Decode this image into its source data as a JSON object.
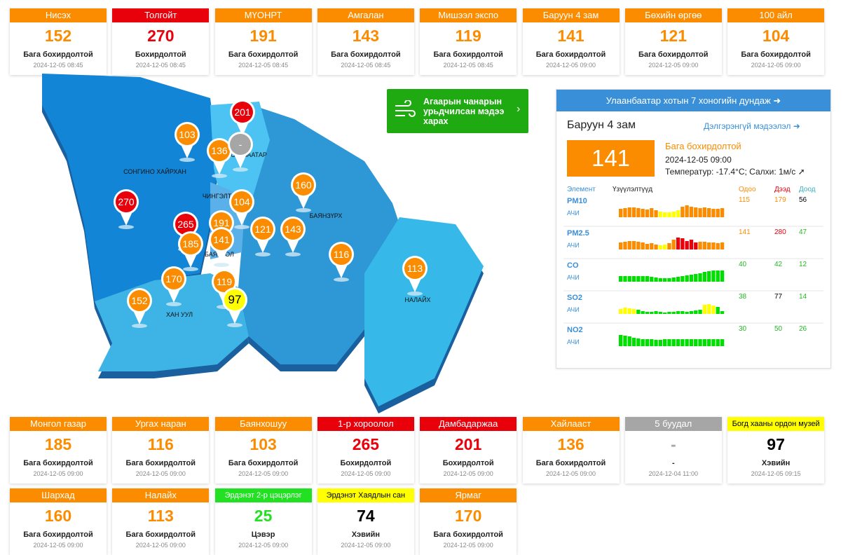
{
  "top_stations": [
    {
      "name": "Нисэх",
      "value": 152,
      "status": "Бага бохирдолтой",
      "time": "2024-12-05 08:45",
      "color": "#fb8c00"
    },
    {
      "name": "Толгойт",
      "value": 270,
      "status": "Бохирдолтой",
      "time": "2024-12-05 08:45",
      "color": "#e8000b"
    },
    {
      "name": "МҮОНРТ",
      "value": 191,
      "status": "Бага бохирдолтой",
      "time": "2024-12-05 08:45",
      "color": "#fb8c00"
    },
    {
      "name": "Амгалан",
      "value": 143,
      "status": "Бага бохирдолтой",
      "time": "2024-12-05 08:45",
      "color": "#fb8c00"
    },
    {
      "name": "Мишээл экспо",
      "value": 119,
      "status": "Бага бохирдолтой",
      "time": "2024-12-05 08:45",
      "color": "#fb8c00"
    },
    {
      "name": "Баруун 4 зам",
      "value": 141,
      "status": "Бага бохирдолтой",
      "time": "2024-12-05 09:00",
      "color": "#fb8c00"
    },
    {
      "name": "Бөхийн өргөө",
      "value": 121,
      "status": "Бага бохирдолтой",
      "time": "2024-12-05 09:00",
      "color": "#fb8c00"
    },
    {
      "name": "100 айл",
      "value": 104,
      "status": "Бага бохирдолтой",
      "time": "2024-12-05 09:00",
      "color": "#fb8c00"
    }
  ],
  "forecast_button": "Агаарын чанарын урьдчилсан мэдээ харах",
  "map": {
    "districts": [
      "СОНГИНО ХАЙРХАН",
      "СҮХБААТАР",
      "ЧИНГЭЛТЭЙ",
      "БАЯНЗҮРХ",
      "БАЯНГОЛ",
      "ХАН УУЛ",
      "НАЛАЙХ"
    ],
    "markers": [
      {
        "value": 103,
        "color": "#fb8c00"
      },
      {
        "value": 201,
        "color": "#e8000b"
      },
      {
        "value": 136,
        "color": "#fb8c00"
      },
      {
        "value": "-",
        "color": "#a6a6a6"
      },
      {
        "value": 270,
        "color": "#e8000b"
      },
      {
        "value": 160,
        "color": "#fb8c00"
      },
      {
        "value": 104,
        "color": "#fb8c00"
      },
      {
        "value": 265,
        "color": "#e8000b"
      },
      {
        "value": 191,
        "color": "#fb8c00"
      },
      {
        "value": 121,
        "color": "#fb8c00"
      },
      {
        "value": 143,
        "color": "#fb8c00"
      },
      {
        "value": 185,
        "color": "#fb8c00"
      },
      {
        "value": 141,
        "color": "#fb8c00"
      },
      {
        "value": 116,
        "color": "#fb8c00"
      },
      {
        "value": 113,
        "color": "#fb8c00"
      },
      {
        "value": 170,
        "color": "#fb8c00"
      },
      {
        "value": 119,
        "color": "#fb8c00"
      },
      {
        "value": 97,
        "color": "#ffff00"
      },
      {
        "value": 152,
        "color": "#fb8c00"
      }
    ]
  },
  "panel": {
    "title": "Улаанбаатар хотын 7 хоногийн дундаж",
    "station": "Баруун 4 зам",
    "details_link": "Дэлгэрэнгүй мэдээлэл",
    "value": 141,
    "status": "Бага бохирдолтой",
    "time": "2024-12-05 09:00",
    "weather": "Температур: -17.4°C; Салхи: 1м/с",
    "columns": [
      "Элемент",
      "Үзүүлэлтүүд",
      "Одоо",
      "Дээд",
      "Доод"
    ],
    "rows": [
      {
        "name": "PM10",
        "unit": "АЧИ",
        "now": 115,
        "max": 179,
        "min": 56,
        "colors": [
          "#fb8c00",
          "#fb8c00",
          "#000"
        ],
        "history": [
          12,
          13,
          14,
          14,
          13,
          12,
          11,
          13,
          10,
          8,
          7,
          7,
          8,
          10,
          15,
          17,
          15,
          14,
          13,
          14,
          13,
          12,
          12,
          13
        ],
        "history_colors": [
          "orange",
          "orange",
          "orange",
          "orange",
          "orange",
          "orange",
          "orange",
          "orange",
          "orange",
          "yellow",
          "yellow",
          "yellow",
          "yellow",
          "yellow",
          "orange",
          "orange",
          "orange",
          "orange",
          "orange",
          "orange",
          "orange",
          "orange",
          "orange",
          "orange"
        ]
      },
      {
        "name": "PM2.5",
        "unit": "АЧИ",
        "now": 141,
        "max": 280,
        "min": 47,
        "colors": [
          "#fb8c00",
          "#e8000b",
          "#22bb22"
        ],
        "history": [
          10,
          11,
          12,
          12,
          11,
          10,
          8,
          9,
          7,
          6,
          7,
          9,
          14,
          17,
          16,
          12,
          14,
          10,
          11,
          11,
          10,
          10,
          9,
          10
        ],
        "history_colors": [
          "orange",
          "orange",
          "orange",
          "orange",
          "orange",
          "orange",
          "orange",
          "orange",
          "orange",
          "yellow",
          "yellow",
          "orange",
          "orange",
          "red",
          "red",
          "red",
          "red",
          "red",
          "orange",
          "orange",
          "orange",
          "orange",
          "orange",
          "orange"
        ]
      },
      {
        "name": "CO",
        "unit": "АЧИ",
        "now": 40,
        "max": 42,
        "min": 12,
        "colors": [
          "#22bb22",
          "#22bb22",
          "#22bb22"
        ],
        "history": [
          8,
          8,
          8,
          8,
          8,
          8,
          8,
          7,
          6,
          5,
          5,
          5,
          6,
          7,
          8,
          9,
          10,
          11,
          12,
          14,
          15,
          16,
          16,
          16
        ],
        "history_colors": [
          "green",
          "green",
          "green",
          "green",
          "green",
          "green",
          "green",
          "green",
          "green",
          "green",
          "green",
          "green",
          "green",
          "green",
          "green",
          "green",
          "green",
          "green",
          "green",
          "green",
          "green",
          "green",
          "green",
          "green"
        ]
      },
      {
        "name": "SO2",
        "unit": "АЧИ",
        "now": 38,
        "max": 77,
        "min": 14,
        "colors": [
          "#22bb22",
          "#000",
          "#22bb22"
        ],
        "history": [
          7,
          9,
          8,
          7,
          6,
          4,
          3,
          3,
          4,
          3,
          2,
          3,
          3,
          4,
          4,
          3,
          4,
          5,
          6,
          13,
          14,
          12,
          10,
          4
        ],
        "history_colors": [
          "yellow",
          "yellow",
          "yellow",
          "yellow",
          "green",
          "green",
          "green",
          "green",
          "green",
          "green",
          "green",
          "green",
          "green",
          "green",
          "green",
          "green",
          "green",
          "green",
          "green",
          "yellow",
          "yellow",
          "yellow",
          "green",
          "green"
        ]
      },
      {
        "name": "NO2",
        "unit": "АЧИ",
        "now": 30,
        "max": 50,
        "min": 26,
        "colors": [
          "#22bb22",
          "#22bb22",
          "#22bb22"
        ],
        "history": [
          16,
          15,
          14,
          12,
          11,
          10,
          10,
          10,
          9,
          9,
          10,
          10,
          10,
          10,
          10,
          10,
          10,
          10,
          10,
          10,
          10,
          10,
          10,
          10
        ],
        "history_colors": [
          "green",
          "green",
          "green",
          "green",
          "green",
          "green",
          "green",
          "green",
          "green",
          "green",
          "green",
          "green",
          "green",
          "green",
          "green",
          "green",
          "green",
          "green",
          "green",
          "green",
          "green",
          "green",
          "green",
          "green"
        ]
      }
    ]
  },
  "bottom_stations": [
    {
      "name": "Монгол газар",
      "value": 185,
      "status": "Бага бохирдолтой",
      "time": "2024-12-05 09:00",
      "color": "#fb8c00"
    },
    {
      "name": "Ургах наран",
      "value": 116,
      "status": "Бага бохирдолтой",
      "time": "2024-12-05 09:00",
      "color": "#fb8c00"
    },
    {
      "name": "Баянхошуу",
      "value": 103,
      "status": "Бага бохирдолтой",
      "time": "2024-12-05 09:00",
      "color": "#fb8c00"
    },
    {
      "name": "1-р хороолол",
      "value": 265,
      "status": "Бохирдолтой",
      "time": "2024-12-05 09:00",
      "color": "#e8000b"
    },
    {
      "name": "Дамбадаржаа",
      "value": 201,
      "status": "Бохирдолтой",
      "time": "2024-12-05 09:00",
      "color": "#e8000b"
    },
    {
      "name": "Хайлааст",
      "value": 136,
      "status": "Бага бохирдолтой",
      "time": "2024-12-05 09:00",
      "color": "#fb8c00"
    },
    {
      "name": "5 буудал",
      "value": "-",
      "status": "-",
      "time": "2024-12-04 11:00",
      "color": "#a6a6a6"
    },
    {
      "name": "Богд хааны ордон музей",
      "value": 97,
      "status": "Хэвийн",
      "time": "2024-12-05 09:15",
      "color": "#ffff00"
    },
    {
      "name": "Шархад",
      "value": 160,
      "status": "Бага бохирдолтой",
      "time": "2024-12-05 09:00",
      "color": "#fb8c00"
    },
    {
      "name": "Налайх",
      "value": 113,
      "status": "Бага бохирдолтой",
      "time": "2024-12-05 09:00",
      "color": "#fb8c00"
    },
    {
      "name": "Эрдэнэт 2-р цэцэрлэг",
      "value": 25,
      "status": "Цэвэр",
      "time": "2024-12-05 09:00",
      "color": "#22e022"
    },
    {
      "name": "Эрдэнэт Хаядлын сан",
      "value": 74,
      "status": "Хэвийн",
      "time": "2024-12-05 09:00",
      "color": "#ffff00"
    },
    {
      "name": "Ярмаг",
      "value": 170,
      "status": "Бага бохирдолтой",
      "time": "2024-12-05 09:00",
      "color": "#fb8c00"
    }
  ]
}
